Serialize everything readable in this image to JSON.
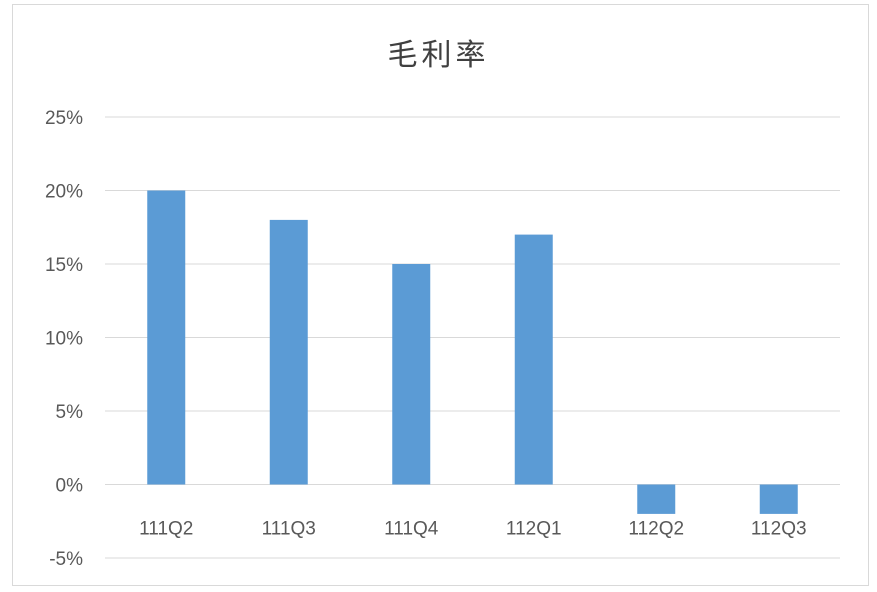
{
  "chart_data": {
    "type": "bar",
    "title": "毛利率",
    "xlabel": "",
    "ylabel": "",
    "categories": [
      "111Q2",
      "111Q3",
      "111Q4",
      "112Q1",
      "112Q2",
      "112Q3"
    ],
    "values": [
      20,
      18,
      15,
      17,
      -2,
      -2
    ],
    "ylim": [
      -5,
      25
    ],
    "yticks": [
      25,
      20,
      15,
      10,
      5,
      0,
      -5
    ],
    "ytick_labels": [
      "25%",
      "20%",
      "15%",
      "10%",
      "5%",
      "0%",
      "-5%"
    ],
    "grid": true,
    "legend": "none",
    "colors": {
      "bar": "#5b9bd5",
      "grid": "#d9d9d9",
      "text": "#595959"
    }
  }
}
